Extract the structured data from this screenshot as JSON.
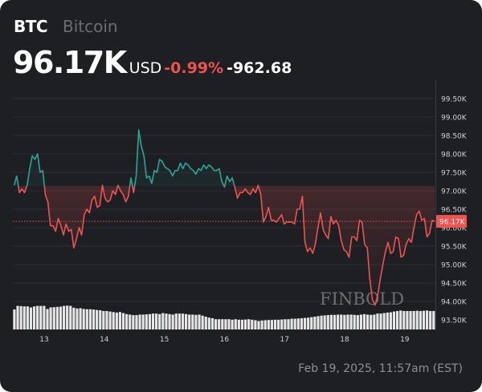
{
  "header": {
    "symbol": "BTC",
    "name": "Bitcoin",
    "price": "96.17K",
    "currency": "USD",
    "change_pct": "-0.99%",
    "change_abs": "-962.68"
  },
  "footer": {
    "timestamp": "Feb 19, 2025, 11:57am (EST)"
  },
  "watermark": "FINBOLD",
  "colors": {
    "up": "#26a69a",
    "down": "#ef5350",
    "background": "#1d1f23",
    "grid": "#2b2e35"
  },
  "chart_data": {
    "type": "line",
    "title": "BTC Bitcoin",
    "xlabel": "",
    "ylabel": "USD",
    "x_ticks": [
      {
        "value": 13,
        "label": "13"
      },
      {
        "value": 14,
        "label": "14"
      },
      {
        "value": 15,
        "label": "15"
      },
      {
        "value": 16,
        "label": "16"
      },
      {
        "value": 17,
        "label": "17"
      },
      {
        "value": 18,
        "label": "18"
      },
      {
        "value": 19,
        "label": "19"
      }
    ],
    "y_ticks": [
      {
        "value": 99.5,
        "label": "99.50K"
      },
      {
        "value": 99.0,
        "label": "99.00K"
      },
      {
        "value": 98.5,
        "label": "98.50K"
      },
      {
        "value": 98.0,
        "label": "98.00K"
      },
      {
        "value": 97.5,
        "label": "97.50K"
      },
      {
        "value": 97.0,
        "label": "97.00K"
      },
      {
        "value": 96.5,
        "label": "96.50K"
      },
      {
        "value": 96.0,
        "label": "96.00K"
      },
      {
        "value": 95.5,
        "label": "95.50K"
      },
      {
        "value": 95.0,
        "label": "95.00K"
      },
      {
        "value": 94.5,
        "label": "94.50K"
      },
      {
        "value": 94.0,
        "label": "94.00K"
      },
      {
        "value": 93.5,
        "label": "93.50K"
      }
    ],
    "ylim": [
      93.25,
      99.75
    ],
    "xlim": [
      12.5,
      19.5
    ],
    "baseline": 97.13,
    "current": {
      "value": 96.17,
      "label": "96.17K"
    },
    "price_start_day": 12.5,
    "price_end_day": 19.5,
    "prices": [
      97.15,
      97.4,
      96.95,
      97.05,
      96.95,
      97.15,
      97.6,
      97.95,
      97.85,
      98.0,
      97.5,
      97.55,
      96.9,
      96.7,
      96.05,
      96.05,
      95.9,
      96.25,
      96.05,
      95.8,
      96.1,
      95.9,
      95.95,
      95.45,
      95.7,
      96.0,
      95.8,
      96.35,
      96.5,
      96.4,
      96.75,
      96.85,
      96.55,
      96.6,
      97.15,
      96.8,
      96.7,
      96.75,
      97.0,
      96.9,
      97.15,
      97.0,
      96.9,
      96.7,
      96.85,
      97.35,
      96.95,
      97.4,
      98.65,
      98.2,
      97.95,
      97.35,
      97.4,
      97.2,
      97.55,
      97.5,
      97.85,
      97.8,
      97.65,
      97.6,
      97.55,
      97.4,
      97.55,
      97.55,
      97.75,
      97.6,
      97.75,
      97.7,
      97.6,
      97.55,
      97.45,
      97.6,
      97.55,
      97.7,
      97.6,
      97.7,
      97.65,
      97.55,
      97.55,
      97.6,
      97.25,
      97.1,
      97.4,
      97.25,
      97.35,
      97.1,
      96.8,
      96.95,
      96.95,
      97.05,
      96.95,
      96.9,
      97.05,
      96.95,
      97.15,
      96.9,
      96.15,
      96.3,
      96.55,
      96.2,
      96.2,
      96.15,
      96.25,
      96.35,
      96.1,
      96.15,
      96.15,
      96.15,
      96.1,
      96.5,
      96.5,
      96.85,
      95.6,
      95.35,
      95.45,
      95.3,
      95.55,
      96.0,
      96.4,
      95.95,
      95.8,
      95.7,
      96.3,
      96.1,
      96.2,
      96.05,
      95.65,
      95.4,
      95.35,
      95.2,
      95.75,
      95.75,
      95.65,
      96.2,
      96.15,
      95.55,
      95.45,
      94.6,
      94.05,
      93.9,
      94.15,
      94.6,
      95.0,
      95.35,
      95.6,
      95.3,
      95.35,
      95.75,
      95.7,
      95.2,
      95.25,
      95.55,
      95.7,
      95.6,
      96.0,
      96.35,
      96.45,
      96.2,
      96.25,
      95.75,
      95.85,
      96.2,
      96.17
    ],
    "volume_relative": [
      78,
      92,
      91,
      90,
      90,
      86,
      90,
      92,
      92,
      92,
      80,
      86,
      87,
      88,
      89,
      92,
      93,
      92,
      85,
      82,
      83,
      80,
      79,
      79,
      78,
      76,
      75,
      72,
      72,
      70,
      68,
      66,
      68,
      64,
      60,
      58,
      56,
      56,
      58,
      58,
      59,
      60,
      62,
      62,
      60,
      64,
      62,
      60,
      58,
      62,
      62,
      62,
      60,
      58,
      58,
      57,
      58,
      54,
      50,
      46,
      44,
      40,
      40,
      40,
      40,
      40,
      38,
      40,
      38,
      38,
      39,
      40,
      38,
      36,
      33,
      35,
      36,
      37,
      37,
      38,
      38,
      39,
      40,
      40,
      42,
      42,
      43,
      44,
      45,
      46,
      48,
      50,
      52,
      54,
      55,
      56,
      57,
      57,
      58,
      58,
      57,
      58,
      58,
      57,
      56,
      58,
      60,
      58,
      57,
      58,
      62,
      62,
      64,
      66,
      67,
      70,
      72,
      74,
      72,
      72,
      72,
      72,
      73,
      72,
      73,
      74,
      72,
      72
    ]
  }
}
